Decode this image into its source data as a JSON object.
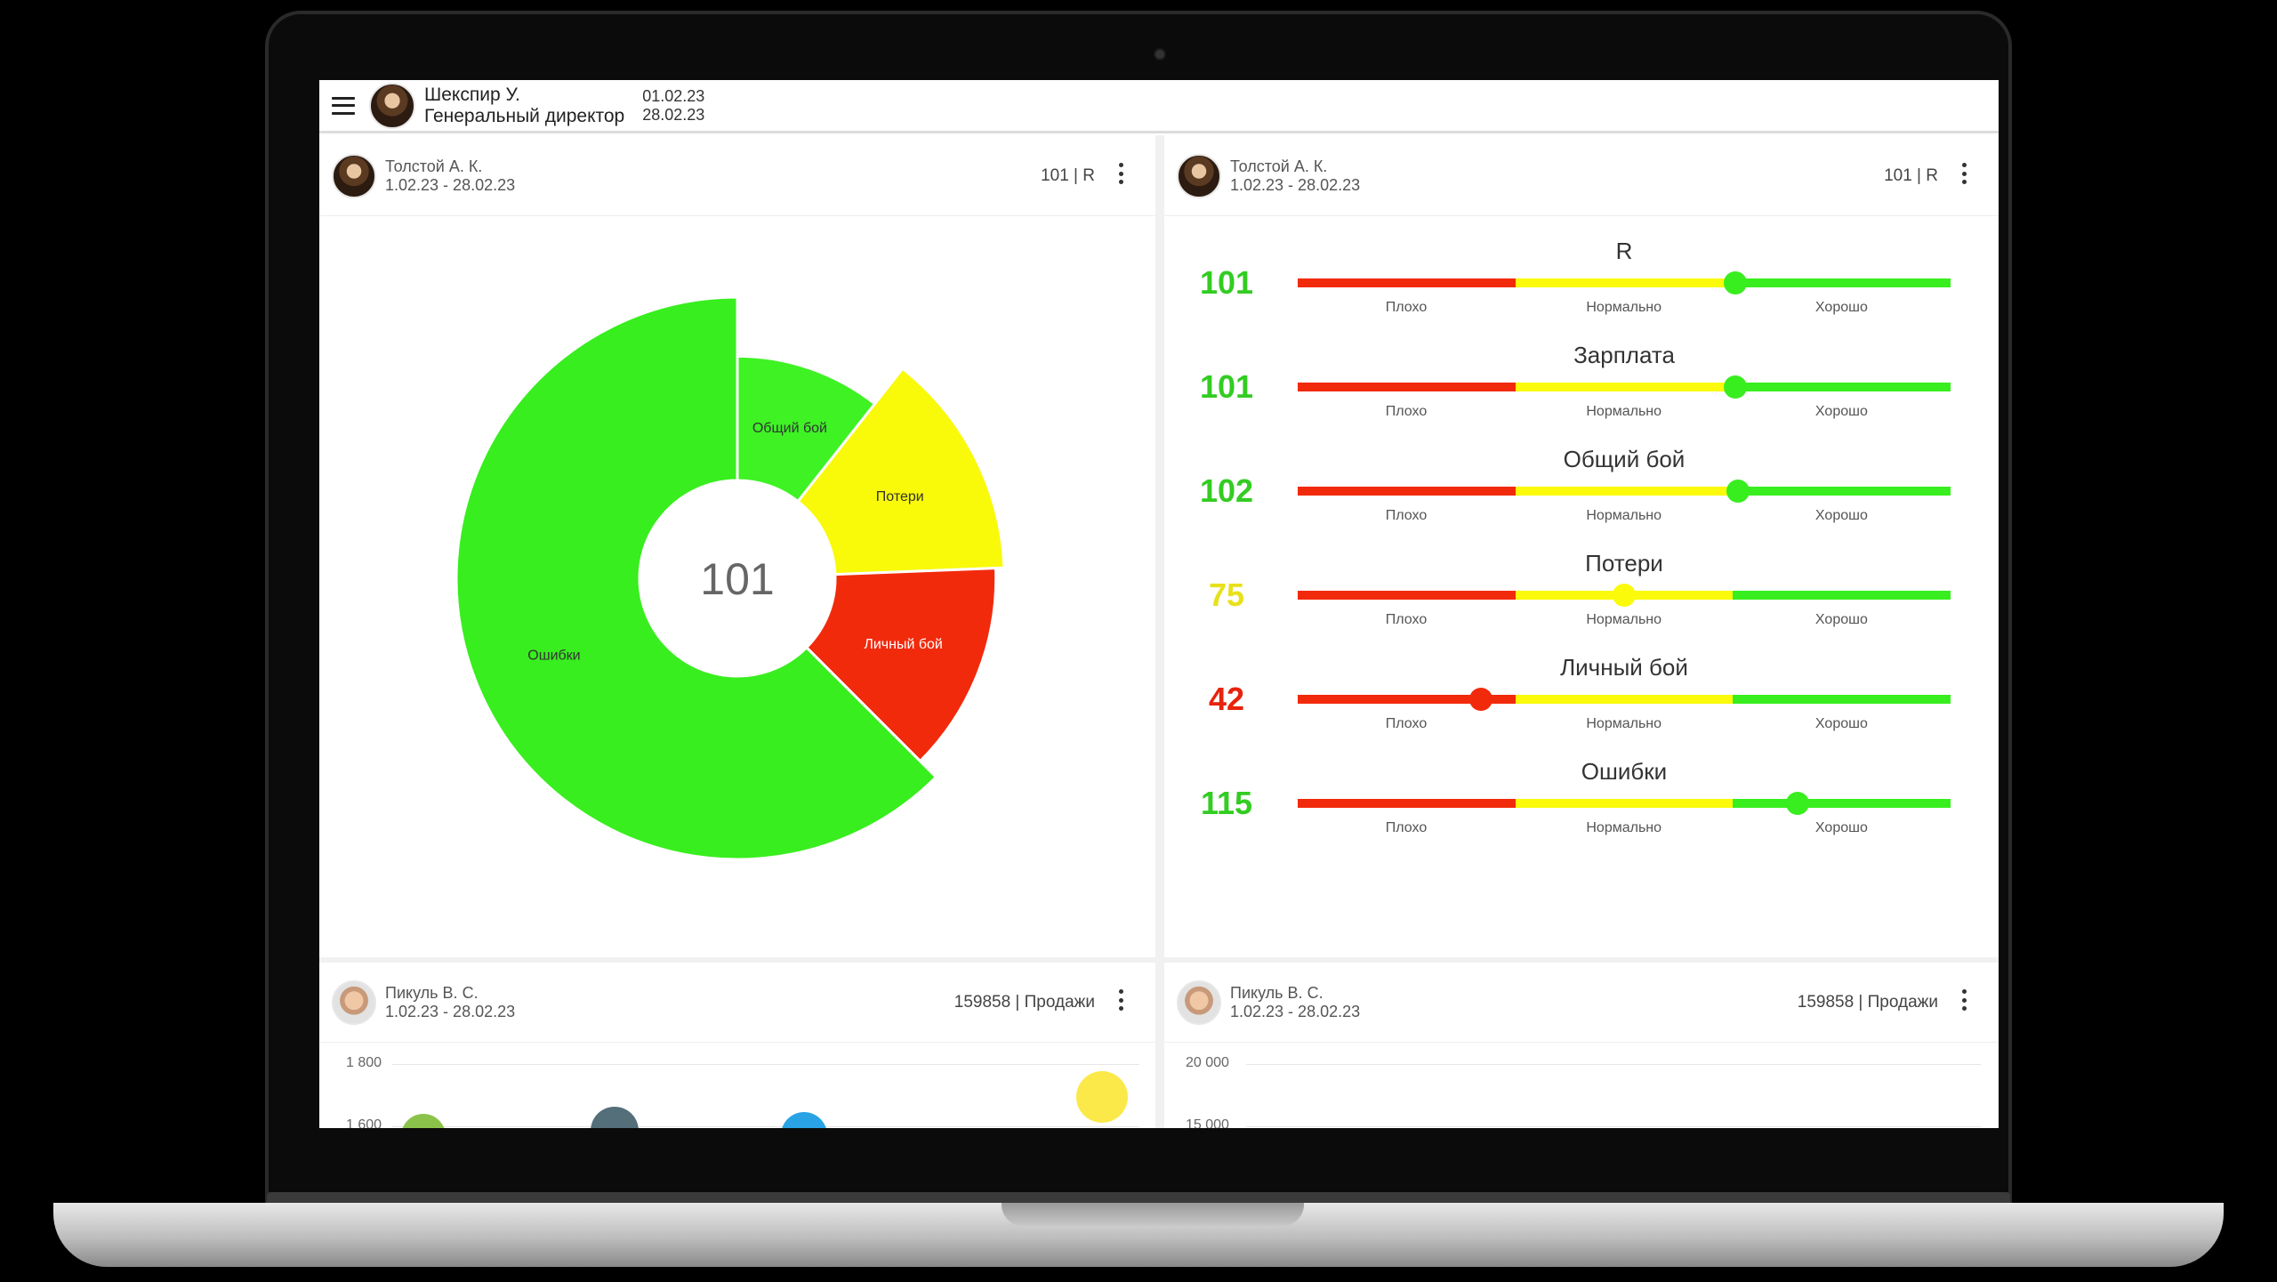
{
  "header": {
    "user_name": "Шекспир У.",
    "user_role": "Генеральный директор",
    "date_from": "01.02.23",
    "date_to": "28.02.23"
  },
  "cards": {
    "donut": {
      "person": "Толстой А. К.",
      "period": "1.02.23 - 28.02.23",
      "meta": "101 | R"
    },
    "gauges": {
      "person": "Толстой А. К.",
      "period": "1.02.23 - 28.02.23",
      "meta": "101 | R"
    },
    "bubbles": {
      "person": "Пикуль В. С.",
      "period": "1.02.23 - 28.02.23",
      "meta": "159858 | Продажи",
      "y_top_label": "1 800",
      "y_second_label": "1 600"
    },
    "sales": {
      "person": "Пикуль В. С.",
      "period": "1.02.23 - 28.02.23",
      "meta": "159858 | Продажи",
      "y_top_label": "20 000",
      "y_second_label": "15 000"
    }
  },
  "colors": {
    "red": "#f22a0c",
    "yellow": "#fafa0a",
    "green": "#38ee1e",
    "value_green": "#33cc22",
    "value_yellow": "#e8e01a",
    "value_red": "#e8220c"
  },
  "chart_data": [
    {
      "type": "pie",
      "center_label": "101",
      "slices": [
        {
          "name": "Общий бой",
          "value": 17,
          "outer": 0.79,
          "color": "#3ef224"
        },
        {
          "name": "Потери",
          "value": 22,
          "outer": 0.95,
          "color": "#f9f90a"
        },
        {
          "name": "Личный бой",
          "value": 21,
          "outer": 0.92,
          "color": "#f22a0c"
        },
        {
          "name": "Ошибки",
          "value": 100,
          "outer": 1.0,
          "color": "#38ee1e"
        }
      ]
    },
    {
      "type": "bar",
      "zone_labels": [
        "Плохо",
        "Нормально",
        "Хорошо"
      ],
      "gauges": [
        {
          "title": "R",
          "value": 101,
          "level": 0.67,
          "tone": "green"
        },
        {
          "title": "Зарплата",
          "value": 101,
          "level": 0.67,
          "tone": "green"
        },
        {
          "title": "Общий бой",
          "value": 102,
          "level": 0.675,
          "tone": "green"
        },
        {
          "title": "Потери",
          "value": 75,
          "level": 0.5,
          "tone": "yellow"
        },
        {
          "title": "Личный бой",
          "value": 42,
          "level": 0.28,
          "tone": "red"
        },
        {
          "title": "Ошибки",
          "value": 115,
          "level": 0.765,
          "tone": "green"
        }
      ]
    }
  ]
}
